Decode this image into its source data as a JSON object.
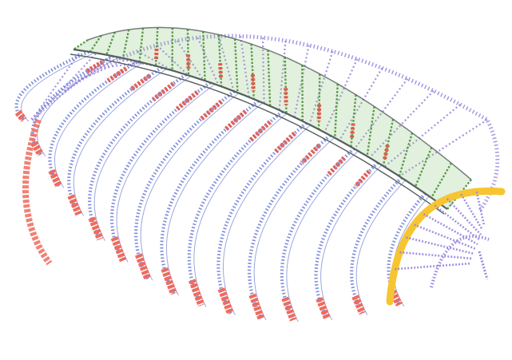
{
  "figure": {
    "subject": "",
    "colors": {
      "background": "#ffffff",
      "mesh_blue": "#6f7fd8",
      "mesh_blue_dark": "#4c5cc4",
      "mesh_violet": "#9a86de",
      "cap_green": "#5a9c4a",
      "cap_green_light": "#8cc47a",
      "base_red": "#f06a5c",
      "ridge_red": "#e2584e",
      "end_yellow": "#f7c531",
      "outline_dark": "#55605c"
    }
  }
}
